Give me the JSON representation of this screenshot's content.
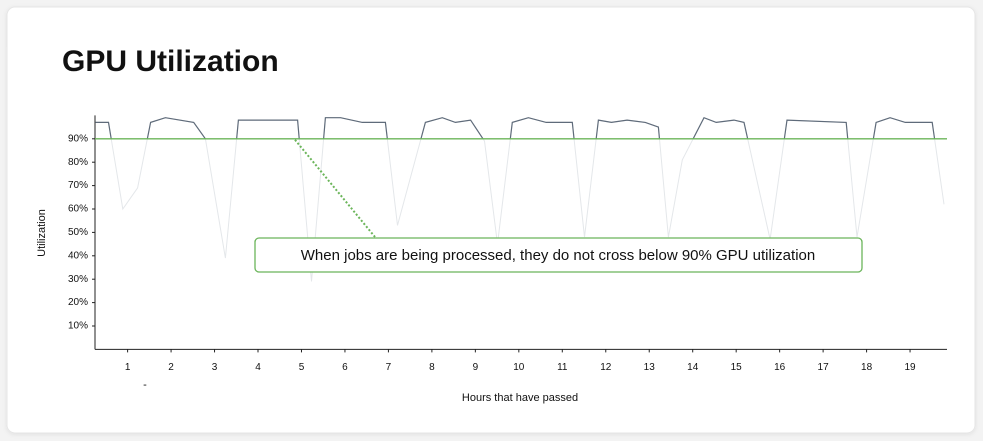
{
  "chart_data": {
    "type": "line",
    "title": "GPU Utilization",
    "xlabel": "Hours that have passed",
    "ylabel": "Utilization",
    "x_note": "-",
    "annotation": "When jobs are being processed, they do not cross below 90% GPU utilization",
    "threshold": 90,
    "threshold_color": "#6bb55a",
    "xlim": [
      0.25,
      19.85
    ],
    "xticks": [
      1,
      2,
      3,
      4,
      5,
      6,
      7,
      8,
      9,
      10,
      11,
      12,
      13,
      14,
      15,
      16,
      17,
      18,
      19
    ],
    "ylim": [
      0,
      100
    ],
    "yticks": [
      {
        "value": 10,
        "label": "10%"
      },
      {
        "value": 20,
        "label": "20%"
      },
      {
        "value": 30,
        "label": "30%"
      },
      {
        "value": 40,
        "label": "40%"
      },
      {
        "value": 50,
        "label": "50%"
      },
      {
        "value": 60,
        "label": "60%"
      },
      {
        "value": 70,
        "label": "70%"
      },
      {
        "value": 80,
        "label": "80%"
      },
      {
        "value": 90,
        "label": "90%"
      }
    ],
    "x": [
      0.26,
      0.56,
      0.89,
      1.23,
      1.53,
      1.87,
      2.52,
      2.79,
      3.25,
      3.55,
      4.91,
      5.23,
      5.55,
      5.9,
      6.4,
      6.93,
      7.21,
      7.85,
      8.24,
      8.54,
      8.89,
      9.21,
      9.51,
      9.85,
      10.22,
      10.63,
      11.23,
      11.51,
      11.83,
      12.13,
      12.49,
      12.91,
      13.21,
      13.44,
      13.76,
      14.26,
      14.54,
      14.95,
      15.18,
      15.78,
      16.17,
      17.53,
      17.78,
      18.22,
      18.54,
      18.89,
      19.51,
      19.78
    ],
    "series": [
      {
        "color": "#5f6b7a",
        "values": [
          97,
          97,
          60,
          69,
          97,
          99,
          97,
          90,
          39,
          98,
          98,
          29,
          99,
          99,
          97,
          97,
          53,
          97,
          99,
          97,
          98,
          89,
          45,
          97,
          99,
          97,
          97,
          48,
          98,
          97,
          98,
          97,
          95,
          48,
          81,
          99,
          97,
          98,
          97,
          47,
          98,
          97,
          48,
          97,
          99,
          97,
          97,
          62
        ]
      }
    ]
  }
}
